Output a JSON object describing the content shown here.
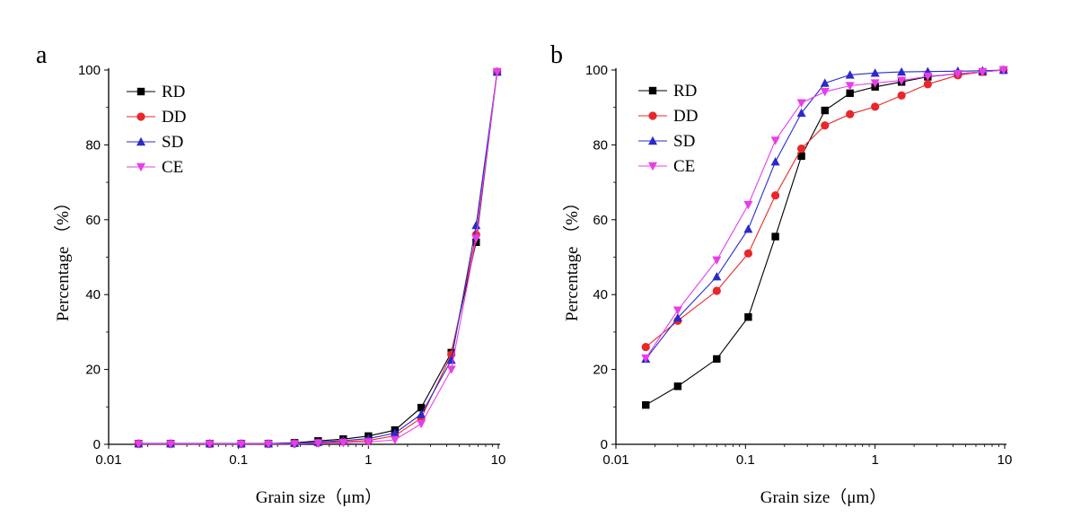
{
  "chart_data": [
    {
      "type": "line",
      "panel": "a",
      "xscale": "log",
      "xlim": [
        0.01,
        10
      ],
      "ylim": [
        0,
        100
      ],
      "xticks": [
        "0.01",
        "0.1",
        "1",
        "10"
      ],
      "yticks": [
        "0",
        "20",
        "40",
        "60",
        "80",
        "100"
      ],
      "xlabel": "Grain size（μm）",
      "ylabel": "Percentage （%）",
      "legend_position": "top-left",
      "x": [
        0.017,
        0.03,
        0.06,
        0.105,
        0.17,
        0.27,
        0.41,
        0.64,
        1.0,
        1.6,
        2.55,
        4.35,
        6.75,
        9.8
      ],
      "series": [
        {
          "name": "RD",
          "color": "#000000",
          "marker": "square",
          "values": [
            0.2,
            0.2,
            0.2,
            0.2,
            0.2,
            0.4,
            0.9,
            1.4,
            2.2,
            3.8,
            9.8,
            24.5,
            54.0,
            99.5
          ]
        },
        {
          "name": "DD",
          "color": "#e8272a",
          "marker": "circle",
          "values": [
            0.1,
            0.1,
            0.1,
            0.1,
            0.1,
            0.2,
            0.4,
            0.7,
            1.0,
            2.3,
            7.0,
            24.0,
            56.0,
            99.5
          ]
        },
        {
          "name": "SD",
          "color": "#2a2acb",
          "marker": "triangle-up",
          "values": [
            0.2,
            0.2,
            0.2,
            0.2,
            0.2,
            0.3,
            0.6,
            1.0,
            1.5,
            3.0,
            8.0,
            22.5,
            58.5,
            99.5
          ]
        },
        {
          "name": "CE",
          "color": "#e83ee8",
          "marker": "triangle-down",
          "values": [
            0.1,
            0.1,
            0.1,
            0.1,
            0.1,
            0.1,
            0.3,
            0.4,
            0.6,
            1.2,
            5.5,
            20.0,
            55.0,
            99.5
          ]
        }
      ]
    },
    {
      "type": "line",
      "panel": "b",
      "xscale": "log",
      "xlim": [
        0.01,
        10
      ],
      "ylim": [
        0,
        100
      ],
      "xticks": [
        "0.01",
        "0.1",
        "1",
        "10"
      ],
      "yticks": [
        "0",
        "20",
        "40",
        "60",
        "80",
        "100"
      ],
      "xlabel": "Grain size（μm）",
      "ylabel": "Percentage （%）",
      "legend_position": "top-left",
      "x": [
        0.017,
        0.03,
        0.06,
        0.105,
        0.17,
        0.27,
        0.41,
        0.64,
        1.0,
        1.6,
        2.55,
        4.35,
        6.75,
        9.8
      ],
      "series": [
        {
          "name": "RD",
          "color": "#000000",
          "marker": "square",
          "values": [
            10.5,
            15.5,
            22.8,
            34.0,
            55.5,
            77.0,
            89.2,
            93.8,
            95.5,
            96.8,
            98.2,
            99.0,
            99.5,
            100.0
          ]
        },
        {
          "name": "DD",
          "color": "#e8272a",
          "marker": "circle",
          "values": [
            26.0,
            33.0,
            41.0,
            51.0,
            66.5,
            79.0,
            85.2,
            88.2,
            90.2,
            93.2,
            96.2,
            98.6,
            99.5,
            100.0
          ]
        },
        {
          "name": "SD",
          "color": "#2a2acb",
          "marker": "triangle-up",
          "values": [
            22.8,
            33.8,
            44.8,
            57.5,
            75.5,
            88.5,
            96.5,
            98.7,
            99.2,
            99.5,
            99.6,
            99.7,
            99.8,
            100.0
          ]
        },
        {
          "name": "CE",
          "color": "#e83ee8",
          "marker": "triangle-down",
          "values": [
            23.0,
            35.8,
            49.2,
            64.0,
            81.2,
            91.2,
            94.2,
            95.8,
            96.5,
            97.2,
            98.3,
            99.0,
            99.5,
            100.0
          ]
        }
      ]
    }
  ]
}
